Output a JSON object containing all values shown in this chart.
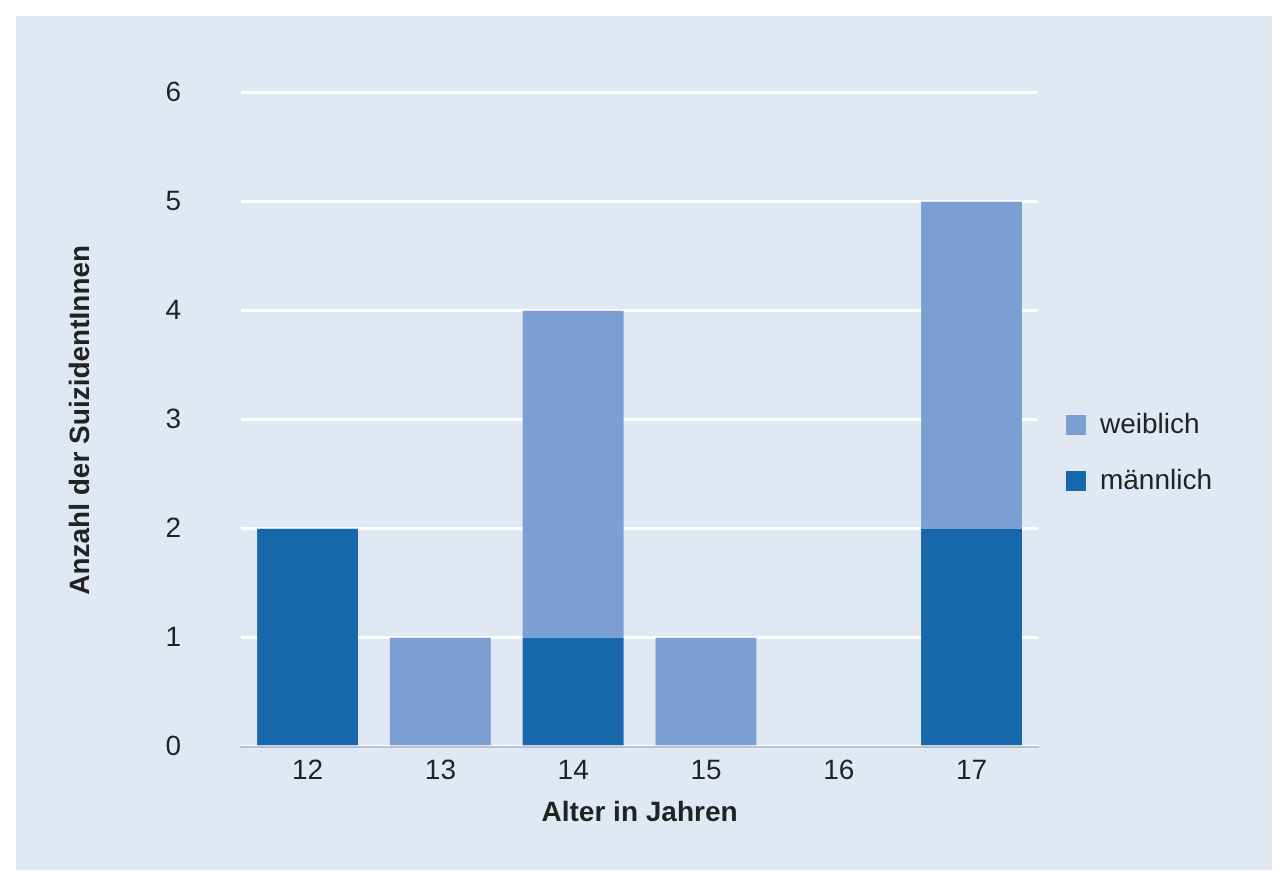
{
  "chart_data": {
    "type": "bar",
    "xlabel": "Alter in Jahren",
    "ylabel": "Anzahl der SuizidentInnen",
    "categories": [
      "12",
      "13",
      "14",
      "15",
      "16",
      "17"
    ],
    "stacked": true,
    "series": [
      {
        "name": "männlich",
        "color": "#1767ad",
        "values": [
          2,
          0,
          1,
          0,
          0,
          2
        ]
      },
      {
        "name": "weiblich",
        "color": "#7b9fd3",
        "values": [
          0,
          1,
          3,
          1,
          0,
          3
        ]
      }
    ],
    "ylim": [
      0,
      6
    ],
    "yticks": [
      0,
      1,
      2,
      3,
      4,
      5,
      6
    ],
    "grid": "y",
    "legend": "right"
  }
}
